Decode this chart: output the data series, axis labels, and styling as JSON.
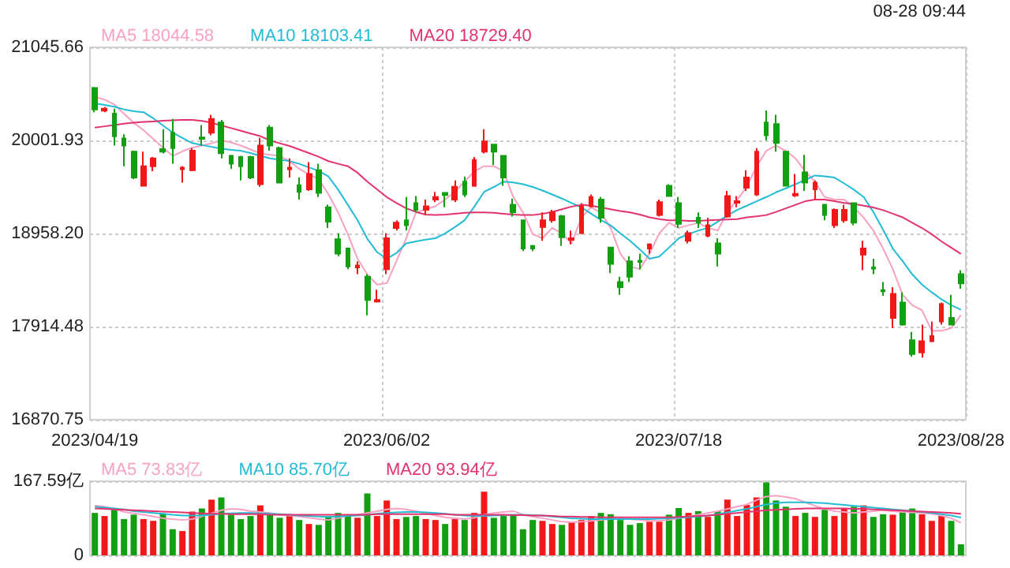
{
  "chart_data": [
    {
      "type": "candlestick",
      "annotations": [
        "08-28 09:44"
      ],
      "categories": [
        "2023/04/19",
        null,
        null,
        null,
        null,
        null,
        null,
        null,
        null,
        null,
        null,
        null,
        null,
        null,
        null,
        null,
        null,
        null,
        null,
        null,
        null,
        null,
        null,
        null,
        null,
        null,
        null,
        null,
        null,
        null,
        "2023/06/02",
        null,
        null,
        null,
        null,
        null,
        null,
        null,
        null,
        null,
        null,
        null,
        null,
        null,
        null,
        null,
        null,
        null,
        null,
        null,
        null,
        null,
        null,
        null,
        null,
        null,
        null,
        null,
        null,
        null,
        "2023/07/18",
        null,
        null,
        null,
        null,
        null,
        null,
        null,
        null,
        null,
        null,
        null,
        null,
        null,
        null,
        null,
        null,
        null,
        null,
        null,
        null,
        null,
        null,
        null,
        null,
        null,
        null,
        null,
        null,
        "2023/08/28"
      ],
      "ohlc": [
        [
          20590,
          20602,
          20319,
          20348
        ],
        [
          20336,
          20377,
          20319,
          20359
        ],
        [
          20302,
          20359,
          19944,
          20048
        ],
        [
          20025,
          20071,
          19713,
          19944
        ],
        [
          19875,
          19886,
          19569,
          19586
        ],
        [
          19494,
          19875,
          19494,
          19713
        ],
        [
          19713,
          19817,
          19656,
          19800
        ],
        [
          19904,
          20129,
          19857,
          19875
        ],
        [
          20088,
          20244,
          19742,
          19915
        ],
        [
          19679,
          19713,
          19529,
          19696
        ],
        [
          19667,
          19915,
          19656,
          19886
        ],
        [
          20036,
          20175,
          19944,
          20019
        ],
        [
          20088,
          20290,
          20059,
          20244
        ],
        [
          20204,
          20233,
          19800,
          19858
        ],
        [
          19829,
          19840,
          19684,
          19742
        ],
        [
          19817,
          19829,
          19552,
          19713
        ],
        [
          19817,
          19829,
          19569,
          19586
        ],
        [
          19511,
          20031,
          19482,
          19944
        ],
        [
          20146,
          20175,
          19886,
          19944
        ],
        [
          19915,
          19932,
          19529,
          19529
        ],
        [
          19679,
          19800,
          19586,
          19696
        ],
        [
          19500,
          19586,
          19338,
          19425
        ],
        [
          19454,
          19759,
          19436,
          19627
        ],
        [
          19667,
          19742,
          19367,
          19413
        ],
        [
          19252,
          19280,
          19021,
          19090
        ],
        [
          18894,
          18963,
          18703,
          18732
        ],
        [
          18790,
          18802,
          18559,
          18588
        ],
        [
          18577,
          18646,
          18502,
          18600
        ],
        [
          18473,
          18502,
          18040,
          18213
        ],
        [
          18196,
          18328,
          18184,
          18213
        ],
        [
          18559,
          18963,
          18502,
          18905
        ],
        [
          19021,
          19107,
          18992,
          19079
        ],
        [
          19107,
          19367,
          18992,
          19050
        ],
        [
          19298,
          19379,
          19194,
          19223
        ],
        [
          19223,
          19338,
          19165,
          19263
        ],
        [
          19338,
          19425,
          19309,
          19367
        ],
        [
          19413,
          19413,
          19252,
          19390
        ],
        [
          19338,
          19552,
          19309,
          19482
        ],
        [
          19540,
          19598,
          19367,
          19396
        ],
        [
          19494,
          19817,
          19482,
          19782
        ],
        [
          19875,
          20129,
          19857,
          19990
        ],
        [
          19955,
          19955,
          19725,
          19875
        ],
        [
          19829,
          19829,
          19494,
          19586
        ],
        [
          19280,
          19350,
          19148,
          19194
        ],
        [
          19107,
          19107,
          18761,
          18790
        ],
        [
          18819,
          18830,
          18761,
          18790
        ],
        [
          19032,
          19194,
          18877,
          19107
        ],
        [
          19107,
          19223,
          19079,
          19194
        ],
        [
          19153,
          19165,
          18819,
          18917
        ],
        [
          18888,
          18992,
          18836,
          18905
        ],
        [
          18963,
          19298,
          18952,
          19263
        ],
        [
          19263,
          19396,
          19252,
          19367
        ],
        [
          19338,
          19367,
          19079,
          19136
        ],
        [
          18802,
          18802,
          18513,
          18617
        ],
        [
          18415,
          18473,
          18271,
          18357
        ],
        [
          18646,
          18704,
          18415,
          18473
        ],
        [
          18652,
          18732,
          18559,
          18640
        ],
        [
          18790,
          18848,
          18732,
          18836
        ],
        [
          19165,
          19338,
          19148,
          19309
        ],
        [
          19494,
          19511,
          19379,
          19379
        ],
        [
          19298,
          19367,
          19021,
          19067
        ],
        [
          18877,
          18992,
          18848,
          18963
        ],
        [
          19136,
          19194,
          19021,
          19079
        ],
        [
          18934,
          19136,
          18917,
          19050
        ],
        [
          18848,
          18905,
          18588,
          18732
        ],
        [
          19148,
          19436,
          19136,
          19379
        ],
        [
          19304,
          19379,
          19252,
          19321
        ],
        [
          19471,
          19667,
          19436,
          19586
        ],
        [
          19396,
          19915,
          19379,
          19875
        ],
        [
          20204,
          20337,
          20002,
          20059
        ],
        [
          20186,
          20290,
          19875,
          19973
        ],
        [
          19875,
          19875,
          19494,
          19494
        ],
        [
          19384,
          19627,
          19367,
          19402
        ],
        [
          19644,
          19840,
          19436,
          19529
        ],
        [
          19454,
          19552,
          19338,
          19529
        ],
        [
          19280,
          19280,
          19107,
          19165
        ],
        [
          19050,
          19240,
          19021,
          19223
        ],
        [
          19107,
          19280,
          19079,
          19223
        ],
        [
          19298,
          19298,
          19050,
          19079
        ],
        [
          18721,
          18877,
          18548,
          18790
        ],
        [
          18577,
          18675,
          18502,
          18565
        ],
        [
          18323,
          18415,
          18259,
          18311
        ],
        [
          18011,
          18357,
          17896,
          18282
        ],
        [
          18184,
          18300,
          17925,
          17936
        ],
        [
          17763,
          17855,
          17578,
          17607
        ],
        [
          17624,
          17936,
          17567,
          17751
        ],
        [
          17751,
          17971,
          17740,
          17809
        ],
        [
          17971,
          18184,
          17936,
          18167
        ],
        [
          18011,
          18271,
          17936,
          17936
        ],
        [
          18502,
          18548,
          18340,
          18398
        ]
      ],
      "colors": [
        "#12a012",
        "#f01818",
        "#12a012",
        "#12a012",
        "#12a012",
        "#f01818",
        "#f01818",
        "#12a012",
        "#12a012",
        "#f01818",
        "#f01818",
        "#12a012",
        "#f01818",
        "#12a012",
        "#12a012",
        "#12a012",
        "#12a012",
        "#f01818",
        "#12a012",
        "#12a012",
        "#f01818",
        "#12a012",
        "#f01818",
        "#12a012",
        "#12a012",
        "#12a012",
        "#12a012",
        "#f01818",
        "#12a012",
        "#f01818",
        "#f01818",
        "#f01818",
        "#12a012",
        "#12a012",
        "#f01818",
        "#f01818",
        "#12a012",
        "#f01818",
        "#12a012",
        "#f01818",
        "#f01818",
        "#12a012",
        "#12a012",
        "#12a012",
        "#12a012",
        "#12a012",
        "#f01818",
        "#f01818",
        "#12a012",
        "#f01818",
        "#f01818",
        "#f01818",
        "#12a012",
        "#12a012",
        "#12a012",
        "#12a012",
        "#12a012",
        "#f01818",
        "#f01818",
        "#12a012",
        "#12a012",
        "#f01818",
        "#12a012",
        "#f01818",
        "#12a012",
        "#f01818",
        "#f01818",
        "#f01818",
        "#f01818",
        "#12a012",
        "#12a012",
        "#12a012",
        "#f01818",
        "#12a012",
        "#f01818",
        "#12a012",
        "#f01818",
        "#f01818",
        "#12a012",
        "#f01818",
        "#12a012",
        "#12a012",
        "#f01818",
        "#12a012",
        "#12a012",
        "#f01818",
        "#f01818",
        "#f01818",
        "#12a012",
        "#12a012"
      ],
      "series": [
        {
          "type": "line",
          "name": "MA5 18044.58",
          "color": "#f7a1c4",
          "values": [
            20492,
            20460,
            20406,
            20300,
            20200,
            20117,
            20020,
            19920,
            19829,
            19880,
            19920,
            19944,
            19970,
            20002,
            19980,
            19944,
            19900,
            19857,
            19840,
            19829,
            19770,
            19684,
            19620,
            19569,
            19400,
            19194,
            18950,
            18675,
            18500,
            18386,
            18400,
            18650,
            18905,
            19194,
            19230,
            19263,
            19340,
            19425,
            19540,
            19656,
            19713,
            19713,
            19656,
            19367,
            19194,
            18950,
            18905,
            19021,
            18960,
            18848,
            19136,
            19252,
            19194,
            19021,
            18732,
            18588,
            18559,
            18732,
            18960,
            19079,
            19021,
            19050,
            19079,
            19021,
            18992,
            19194,
            19338,
            19482,
            19713,
            19886,
            19944,
            19886,
            19800,
            19656,
            19540,
            19367,
            19338,
            19338,
            19252,
            19136,
            18992,
            18790,
            18559,
            18271,
            18155,
            18098,
            17867,
            17867,
            17896,
            18044.58
          ]
        },
        {
          "type": "line",
          "name": "MA10 18103.41",
          "color": "#22bcd4",
          "values": [
            20417,
            20400,
            20380,
            20350,
            20330,
            20319,
            20250,
            20170,
            20090,
            20030,
            19973,
            19950,
            19930,
            19910,
            19895,
            19886,
            19860,
            19830,
            19800,
            19785,
            19771,
            19740,
            19700,
            19660,
            19598,
            19450,
            19280,
            19107,
            18900,
            18750,
            18675,
            18740,
            18848,
            18870,
            18890,
            18905,
            18960,
            19030,
            19107,
            19260,
            19425,
            19480,
            19540,
            19530,
            19511,
            19480,
            19440,
            19396,
            19350,
            19300,
            19252,
            19180,
            19110,
            19050,
            18960,
            18877,
            18780,
            18675,
            18700,
            18800,
            18905,
            18950,
            18990,
            19021,
            19090,
            19160,
            19223,
            19270,
            19320,
            19367,
            19420,
            19465,
            19511,
            19560,
            19609,
            19600,
            19586,
            19520,
            19450,
            19367,
            19200,
            19000,
            18790,
            18650,
            18500,
            18386,
            18300,
            18220,
            18155,
            18103.41
          ]
        },
        {
          "type": "line",
          "name": "MA20 18729.40",
          "color": "#e3336e",
          "values": [
            20146,
            20160,
            20175,
            20190,
            20200,
            20210,
            20215,
            20222,
            20228,
            20232,
            20232,
            20220,
            20200,
            20170,
            20140,
            20110,
            20080,
            20050,
            20002,
            19970,
            19940,
            19900,
            19860,
            19820,
            19770,
            19740,
            19713,
            19640,
            19540,
            19454,
            19367,
            19300,
            19240,
            19200,
            19170,
            19165,
            19170,
            19180,
            19190,
            19194,
            19194,
            19190,
            19180,
            19170,
            19165,
            19165,
            19180,
            19200,
            19230,
            19260,
            19280,
            19270,
            19250,
            19230,
            19210,
            19194,
            19170,
            19140,
            19120,
            19107,
            19107,
            19100,
            19100,
            19107,
            19110,
            19115,
            19120,
            19140,
            19150,
            19165,
            19200,
            19240,
            19280,
            19320,
            19338,
            19338,
            19320,
            19300,
            19290,
            19270,
            19250,
            19220,
            19180,
            19140,
            19079,
            19020,
            18950,
            18870,
            18800,
            18729.4
          ]
        }
      ],
      "ylim": [
        16870.75,
        21045.66
      ],
      "yticks": [
        16870.75,
        17914.48,
        {
          "value": 18958.2,
          "label": "18958.20"
        },
        20001.93,
        21045.66
      ],
      "grid": true,
      "legend": "top left",
      "marker": "none"
    },
    {
      "type": "bar",
      "tick_labels": "y",
      "categories": [
        null,
        null,
        null,
        null,
        null,
        null,
        null,
        null,
        null,
        null,
        null,
        null,
        null,
        null,
        null,
        null,
        null,
        null,
        null,
        null,
        null,
        null,
        null,
        null,
        null,
        null,
        null,
        null,
        null,
        null,
        null,
        null,
        null,
        null,
        null,
        null,
        null,
        null,
        null,
        null,
        null,
        null,
        null,
        null,
        null,
        null,
        null,
        null,
        null,
        null,
        null,
        null,
        null,
        null,
        null,
        null,
        null,
        null,
        null,
        null,
        null,
        null,
        null,
        null,
        null,
        null,
        null,
        null,
        null,
        null,
        null,
        null,
        null,
        null,
        null,
        null,
        null,
        null,
        null,
        null,
        null,
        null,
        null,
        null,
        null,
        null,
        null,
        null,
        null,
        null
      ],
      "values": [
        96,
        89,
        103,
        82,
        92,
        82,
        78,
        95,
        59,
        55,
        99,
        106,
        126,
        131,
        92,
        82,
        89,
        113,
        96,
        85,
        89,
        80,
        71,
        69,
        89,
        96,
        89,
        85,
        140,
        89,
        124,
        82,
        87,
        89,
        82,
        80,
        71,
        82,
        80,
        96,
        144,
        85,
        89,
        92,
        59,
        80,
        78,
        71,
        69,
        76,
        80,
        89,
        96,
        93,
        80,
        69,
        73,
        76,
        76,
        92,
        107,
        96,
        100,
        87,
        100,
        126,
        89,
        114,
        131,
        165,
        124,
        110,
        89,
        96,
        87,
        103,
        89,
        106,
        110,
        113,
        87,
        93,
        92,
        103,
        106,
        93,
        78,
        89,
        78,
        25
      ],
      "colors": [
        "#12a012",
        "#f01818",
        "#12a012",
        "#12a012",
        "#12a012",
        "#f01818",
        "#f01818",
        "#12a012",
        "#12a012",
        "#f01818",
        "#f01818",
        "#12a012",
        "#f01818",
        "#12a012",
        "#12a012",
        "#12a012",
        "#12a012",
        "#f01818",
        "#12a012",
        "#12a012",
        "#f01818",
        "#12a012",
        "#f01818",
        "#12a012",
        "#12a012",
        "#12a012",
        "#12a012",
        "#f01818",
        "#12a012",
        "#f01818",
        "#f01818",
        "#f01818",
        "#12a012",
        "#12a012",
        "#f01818",
        "#f01818",
        "#12a012",
        "#f01818",
        "#12a012",
        "#f01818",
        "#f01818",
        "#12a012",
        "#12a012",
        "#12a012",
        "#12a012",
        "#12a012",
        "#f01818",
        "#f01818",
        "#12a012",
        "#f01818",
        "#f01818",
        "#f01818",
        "#12a012",
        "#12a012",
        "#12a012",
        "#12a012",
        "#12a012",
        "#f01818",
        "#f01818",
        "#12a012",
        "#12a012",
        "#f01818",
        "#12a012",
        "#f01818",
        "#12a012",
        "#f01818",
        "#f01818",
        "#f01818",
        "#f01818",
        "#12a012",
        "#12a012",
        "#12a012",
        "#f01818",
        "#12a012",
        "#f01818",
        "#12a012",
        "#f01818",
        "#f01818",
        "#12a012",
        "#f01818",
        "#12a012",
        "#12a012",
        "#f01818",
        "#12a012",
        "#12a012",
        "#f01818",
        "#f01818",
        "#f01818",
        "#12a012",
        "#12a012"
      ],
      "series": [
        {
          "type": "line",
          "name": "MA5 73.83亿",
          "color": "#f7a1c4",
          "values": [
            113,
            110,
            105,
            98,
            95,
            92,
            88,
            84,
            82,
            80,
            82,
            88,
            95,
            102,
            105,
            104,
            100,
            98,
            96,
            92,
            90,
            88,
            85,
            82,
            80,
            84,
            90,
            92,
            96,
            100,
            104,
            106,
            104,
            100,
            95,
            90,
            86,
            84,
            82,
            85,
            92,
            96,
            98,
            100,
            92,
            88,
            84,
            80,
            76,
            75,
            76,
            78,
            80,
            82,
            84,
            82,
            80,
            78,
            78,
            80,
            84,
            88,
            92,
            96,
            100,
            105,
            110,
            115,
            125,
            133,
            135,
            132,
            128,
            120,
            112,
            105,
            100,
            98,
            96,
            98,
            100,
            102,
            100,
            98,
            97,
            96,
            94,
            90,
            84,
            73.83
          ]
        },
        {
          "type": "line",
          "name": "MA10 85.70亿",
          "color": "#22bcd4",
          "values": [
            110,
            108,
            106,
            104,
            100,
            98,
            96,
            94,
            92,
            90,
            90,
            90,
            92,
            94,
            95,
            96,
            96,
            95,
            94,
            93,
            92,
            90,
            89,
            88,
            87,
            88,
            89,
            90,
            92,
            94,
            96,
            97,
            98,
            98,
            97,
            96,
            94,
            92,
            90,
            89,
            89,
            90,
            91,
            92,
            92,
            91,
            90,
            88,
            86,
            84,
            83,
            82,
            82,
            82,
            82,
            82,
            82,
            82,
            83,
            84,
            85,
            86,
            88,
            90,
            93,
            97,
            101,
            105,
            110,
            115,
            118,
            120,
            120,
            120,
            119,
            118,
            116,
            114,
            112,
            110,
            108,
            106,
            104,
            102,
            100,
            98,
            96,
            93,
            90,
            85.7
          ]
        },
        {
          "type": "line",
          "name": "MA20 93.94亿",
          "color": "#e3336e",
          "values": [
            106,
            105,
            104,
            103,
            102,
            101,
            100,
            99,
            98,
            97,
            96,
            95,
            94,
            94,
            93,
            93,
            93,
            93,
            92,
            92,
            92,
            92,
            92,
            92,
            92,
            92,
            92,
            92,
            92,
            93,
            93,
            93,
            93,
            93,
            93,
            93,
            93,
            92,
            92,
            92,
            92,
            92,
            92,
            91,
            91,
            90,
            90,
            89,
            88,
            88,
            87,
            87,
            86,
            86,
            86,
            86,
            86,
            86,
            86,
            86,
            87,
            88,
            89,
            90,
            92,
            94,
            96,
            98,
            100,
            102,
            103,
            104,
            105,
            106,
            106,
            106,
            106,
            106,
            105,
            105,
            104,
            103,
            102,
            101,
            100,
            99,
            98,
            97,
            96,
            93.94
          ]
        }
      ],
      "ylim": [
        0,
        167.59
      ],
      "yticks": [
        0,
        {
          "value": 167.59,
          "label": "167.59亿"
        }
      ],
      "grid": "y",
      "legend": "top left",
      "marker": "none"
    }
  ]
}
